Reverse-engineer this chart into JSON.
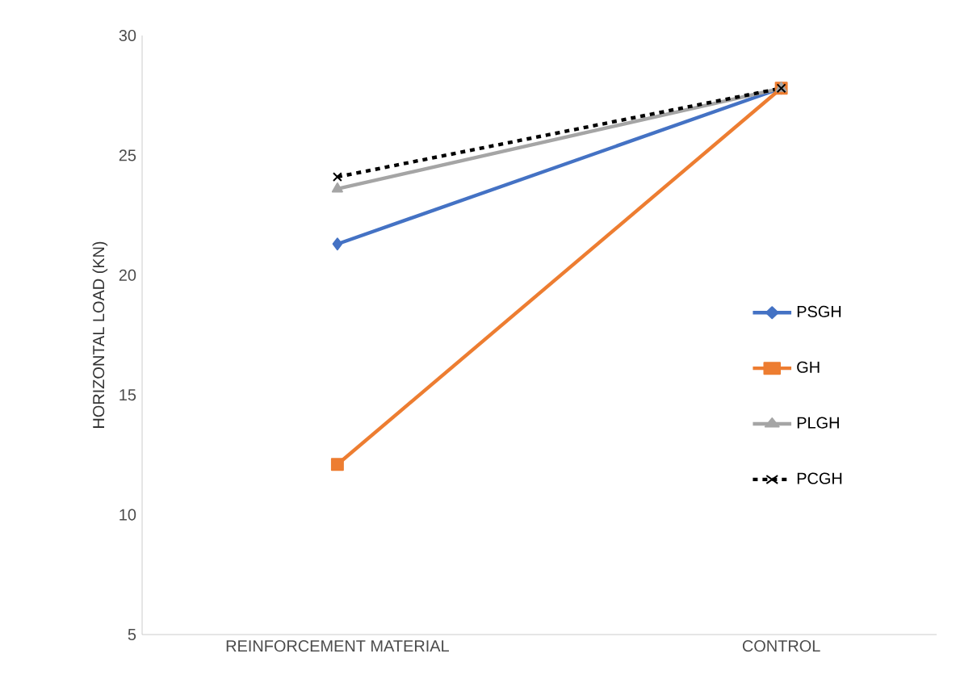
{
  "chart_data": {
    "type": "line",
    "ylabel": "HORIZONTAL LOAD (KN)",
    "categories": [
      "REINFORCEMENT MATERIAL",
      "CONTROL"
    ],
    "series": [
      {
        "name": "PSGH",
        "color": "#4472c4",
        "marker": "diamond",
        "values": [
          21.3,
          27.8
        ]
      },
      {
        "name": "GH",
        "color": "#ed7d31",
        "marker": "square",
        "values": [
          12.1,
          27.8
        ]
      },
      {
        "name": "PLGH",
        "color": "#a5a5a5",
        "marker": "triangle",
        "values": [
          23.6,
          27.8
        ]
      },
      {
        "name": "PCGH",
        "color": "#000000",
        "marker": "cross",
        "line_style": "dashed",
        "values": [
          24.1,
          27.8
        ]
      }
    ],
    "ylim": [
      5,
      30
    ],
    "yticks": [
      5,
      10,
      15,
      20,
      25,
      30
    ],
    "grid": false,
    "legend": "right"
  }
}
